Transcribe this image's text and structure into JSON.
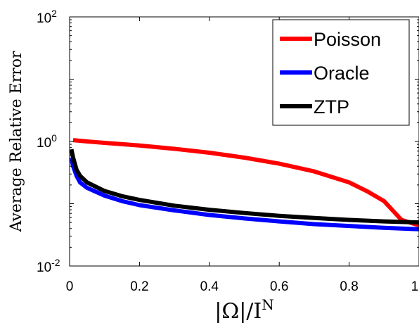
{
  "chart_data": {
    "type": "line",
    "xlabel": "|Ω|/I",
    "xlabel_sup": "N",
    "ylabel": "Average Relative Error",
    "xlim": [
      0,
      1
    ],
    "ylim": [
      0.01,
      100
    ],
    "yscale": "log",
    "grid": false,
    "legend_position": "top-right",
    "x_ticks": [
      {
        "value": 0,
        "label": "0"
      },
      {
        "value": 0.2,
        "label": "0.2"
      },
      {
        "value": 0.4,
        "label": "0.4"
      },
      {
        "value": 0.6,
        "label": "0.6"
      },
      {
        "value": 0.8,
        "label": "0.8"
      },
      {
        "value": 1,
        "label": "1"
      }
    ],
    "y_ticks": [
      {
        "value": 0.01,
        "base": "10",
        "exp": "-2"
      },
      {
        "value": 1,
        "base": "10",
        "exp": "0"
      },
      {
        "value": 100,
        "base": "10",
        "exp": "2"
      }
    ],
    "series": [
      {
        "name": "Poisson",
        "color": "#ff0000",
        "x": [
          0.01,
          0.05,
          0.1,
          0.2,
          0.3,
          0.4,
          0.5,
          0.6,
          0.7,
          0.8,
          0.85,
          0.9,
          0.95,
          1.0
        ],
        "y": [
          1.05,
          1.0,
          0.95,
          0.86,
          0.76,
          0.66,
          0.55,
          0.44,
          0.33,
          0.22,
          0.16,
          0.11,
          0.055,
          0.045
        ]
      },
      {
        "name": "Oracle",
        "color": "#0000ff",
        "x": [
          0.005,
          0.01,
          0.02,
          0.03,
          0.05,
          0.1,
          0.15,
          0.2,
          0.3,
          0.4,
          0.5,
          0.6,
          0.7,
          0.8,
          0.9,
          1.0
        ],
        "y": [
          0.55,
          0.4,
          0.28,
          0.22,
          0.18,
          0.135,
          0.11,
          0.095,
          0.078,
          0.066,
          0.058,
          0.052,
          0.047,
          0.044,
          0.041,
          0.039
        ]
      },
      {
        "name": "ZTP",
        "color": "#000000",
        "x": [
          0.005,
          0.01,
          0.02,
          0.03,
          0.05,
          0.1,
          0.15,
          0.2,
          0.3,
          0.4,
          0.5,
          0.6,
          0.7,
          0.8,
          0.9,
          1.0
        ],
        "y": [
          0.75,
          0.55,
          0.35,
          0.28,
          0.22,
          0.16,
          0.132,
          0.115,
          0.093,
          0.08,
          0.071,
          0.064,
          0.059,
          0.055,
          0.052,
          0.05
        ]
      }
    ]
  }
}
